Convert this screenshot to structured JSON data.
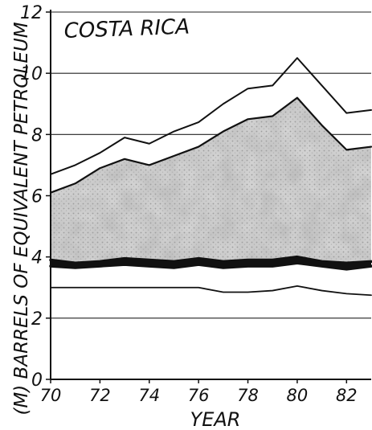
{
  "chart_data": {
    "type": "area",
    "title": "COSTA RICA",
    "xlabel": "YEAR",
    "ylabel": "(M) BARRELS OF EQUIVALENT PETROLEUM",
    "xlim": [
      70,
      83
    ],
    "ylim": [
      0,
      12
    ],
    "x_ticks": [
      70,
      72,
      74,
      76,
      78,
      80,
      82
    ],
    "y_ticks": [
      0,
      2,
      4,
      6,
      8,
      10,
      12
    ],
    "grid": "horizontal",
    "x": [
      70,
      71,
      72,
      73,
      74,
      75,
      76,
      77,
      78,
      79,
      80,
      81,
      82,
      83
    ],
    "series": [
      {
        "values": [
          6.7,
          7.0,
          7.4,
          7.9,
          7.7,
          8.1,
          8.4,
          9.0,
          9.5,
          9.6,
          10.5,
          9.6,
          8.7,
          8.8
        ]
      },
      {
        "values": [
          6.1,
          6.4,
          6.9,
          7.2,
          7.0,
          7.3,
          7.6,
          8.1,
          8.5,
          8.6,
          9.2,
          8.3,
          7.5,
          7.6
        ]
      },
      {
        "values": [
          3.9,
          3.8,
          3.85,
          3.95,
          3.9,
          3.85,
          3.95,
          3.85,
          3.9,
          3.9,
          4.0,
          3.85,
          3.8,
          3.85
        ]
      },
      {
        "values": [
          3.7,
          3.65,
          3.7,
          3.75,
          3.7,
          3.65,
          3.75,
          3.65,
          3.7,
          3.7,
          3.8,
          3.7,
          3.6,
          3.7
        ]
      },
      {
        "values": [
          3.0,
          3.0,
          3.0,
          3.0,
          3.0,
          3.0,
          3.0,
          2.85,
          2.85,
          2.9,
          3.05,
          2.9,
          2.8,
          2.75
        ]
      }
    ]
  }
}
